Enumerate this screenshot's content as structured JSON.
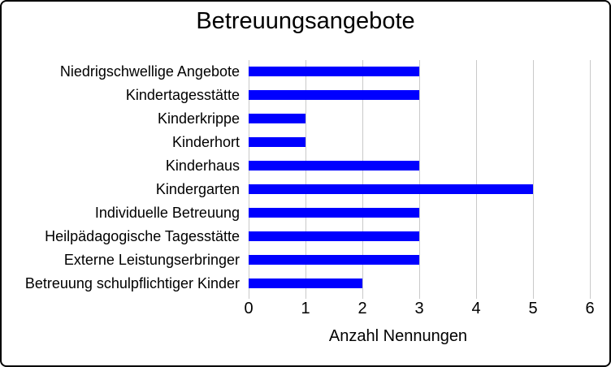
{
  "chart_data": {
    "type": "bar",
    "orientation": "horizontal",
    "title": "Betreuungsangebote",
    "xlabel": "Anzahl Nennungen",
    "categories": [
      "Niedrigschwellige Angebote",
      "Kindertagesstätte",
      "Kinderkrippe",
      "Kinderhort",
      "Kinderhaus",
      "Kindergarten",
      "Individuelle Betreuung",
      "Heilpädagogische Tagesstätte",
      "Externe Leistungserbringer",
      "Betreuung schulpflichtiger Kinder"
    ],
    "values": [
      3,
      3,
      1,
      1,
      3,
      5,
      3,
      3,
      3,
      2
    ],
    "xlim": [
      0,
      6
    ],
    "xticks": [
      0,
      1,
      2,
      3,
      4,
      5,
      6
    ],
    "grid": true,
    "legend": false,
    "bar_color": "#0000FF",
    "gridline_color": "#C9C9C9",
    "text_color": "#000000",
    "frame_color": "#000000",
    "background_color": "#FFFFFF"
  }
}
